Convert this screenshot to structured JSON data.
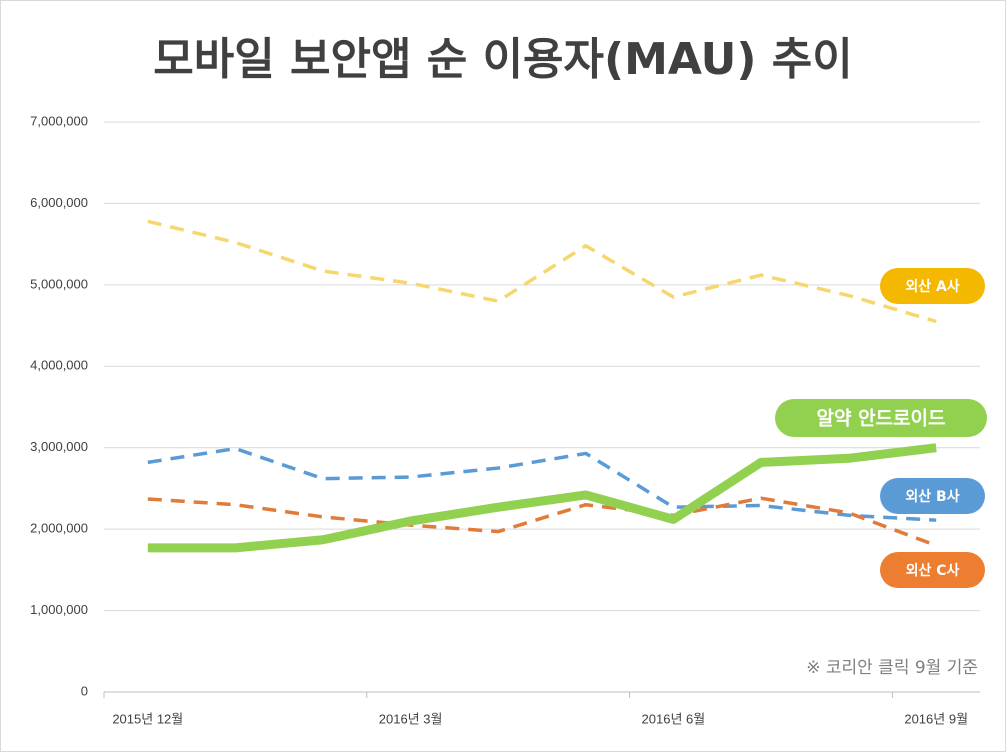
{
  "chart_data": {
    "type": "line",
    "title": "모바일 보안앱 순 이용자(MAU) 추이",
    "annotation": "※ 코리안 클릭 9월 기준",
    "categories": [
      "2015년 12월",
      null,
      null,
      "2016년 3월",
      null,
      null,
      "2016년 6월",
      null,
      null,
      "2016년 9월"
    ],
    "series": [
      {
        "name": "외산 A사",
        "color": "#f5d76e",
        "line_style": "dashed",
        "label_color": "#f5b800",
        "values": [
          5780000,
          5520000,
          5170000,
          5020000,
          4800000,
          5480000,
          4850000,
          5120000,
          4870000,
          4550000
        ]
      },
      {
        "name": "외산 B사",
        "color": "#5b9bd5",
        "line_style": "dashed",
        "label_color": "#5b9bd5",
        "values": [
          2820000,
          2990000,
          2620000,
          2640000,
          2750000,
          2930000,
          2270000,
          2290000,
          2170000,
          2110000
        ]
      },
      {
        "name": "외산 C사",
        "color": "#e07b39",
        "line_style": "dashed",
        "label_color": "#ed7d31",
        "values": [
          2370000,
          2300000,
          2150000,
          2050000,
          1970000,
          2300000,
          2170000,
          2380000,
          2200000,
          1800000
        ]
      },
      {
        "name": "알약 안드로이드",
        "color": "#92d050",
        "line_style": "solid",
        "label_color": "#92d050",
        "values": [
          1770000,
          1770000,
          1870000,
          2100000,
          2270000,
          2420000,
          2120000,
          2820000,
          2870000,
          3000000
        ]
      }
    ],
    "ylim": [
      0,
      7000000
    ],
    "yticks": [
      0,
      {
        "value": 1000000,
        "label": "1,000,000"
      },
      {
        "value": 2000000,
        "label": "2,000,000"
      },
      {
        "value": 3000000,
        "label": "3,000,000"
      },
      {
        "value": 4000000,
        "label": "4,000,000"
      },
      {
        "value": 5000000,
        "label": "5,000,000"
      },
      {
        "value": 6000000,
        "label": "6,000,000"
      },
      {
        "value": 7000000,
        "label": "7,000,000"
      }
    ],
    "grid": true
  }
}
